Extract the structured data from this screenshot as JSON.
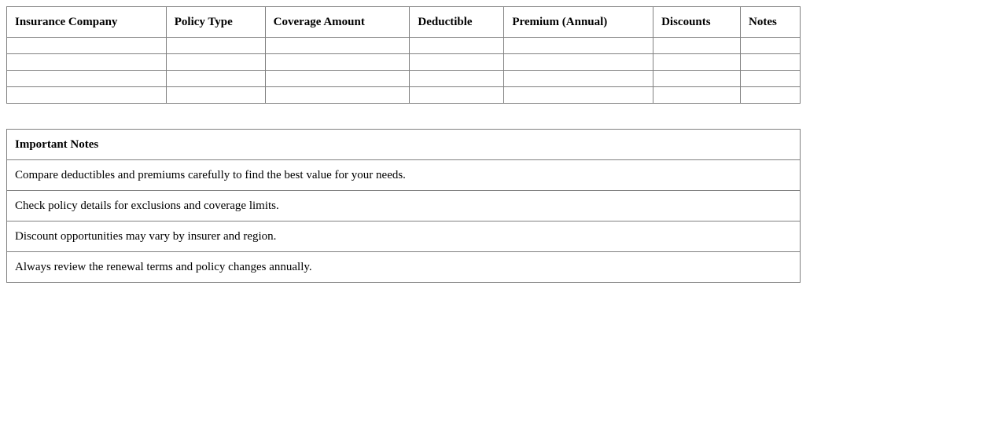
{
  "comparison_table": {
    "headers": [
      "Insurance Company",
      "Policy Type",
      "Coverage Amount",
      "Deductible",
      "Premium (Annual)",
      "Discounts",
      "Notes"
    ],
    "rows": [
      [
        "",
        "",
        "",
        "",
        "",
        "",
        ""
      ],
      [
        "",
        "",
        "",
        "",
        "",
        "",
        ""
      ],
      [
        "",
        "",
        "",
        "",
        "",
        "",
        ""
      ],
      [
        "",
        "",
        "",
        "",
        "",
        "",
        ""
      ]
    ]
  },
  "notes_table": {
    "title": "Important Notes",
    "items": [
      "Compare deductibles and premiums carefully to find the best value for your needs.",
      "Check policy details for exclusions and coverage limits.",
      "Discount opportunities may vary by insurer and region.",
      "Always review the renewal terms and policy changes annually."
    ]
  }
}
